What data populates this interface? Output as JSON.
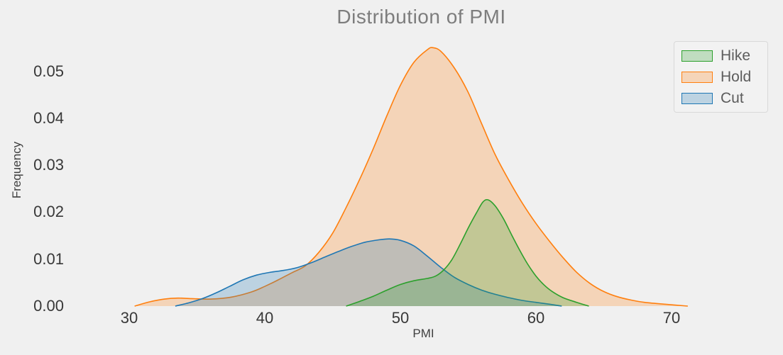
{
  "title": "Distribution of PMI",
  "colors": {
    "background": "#f0f0f0",
    "title_text": "#7d7d7d",
    "tick_text": "#383838",
    "legend_text": "#5c5c5c",
    "legend_border": "#d9d9d9",
    "hike_green": "#2ca02c",
    "hold_orange": "#ff7f0e",
    "cut_blue": "#1f77b4"
  },
  "legend": {
    "entries": [
      "Hike",
      "Hold",
      "Cut"
    ]
  },
  "chart_data": {
    "type": "area",
    "subtype": "kde-density",
    "title": "Distribution of PMI",
    "xlabel": "PMI",
    "ylabel": "Frequency",
    "x_ticks": [
      30,
      40,
      50,
      60,
      70
    ],
    "y_ticks": [
      "0.00",
      "0.01",
      "0.02",
      "0.03",
      "0.04",
      "0.05"
    ],
    "xlim": [
      30,
      70
    ],
    "ylim": [
      0,
      0.055
    ],
    "grid": false,
    "legend_position": "upper right",
    "fill_alpha": 0.25,
    "draw_order": [
      "Hold",
      "Cut",
      "Hike"
    ],
    "series": [
      {
        "name": "Hike",
        "color": "#2ca02c",
        "peak": {
          "x": 56.4,
          "y": 0.0226
        },
        "points": [
          [
            46.0,
            0
          ],
          [
            47.0,
            0.001
          ],
          [
            48.0,
            0.0021
          ],
          [
            49.0,
            0.0034
          ],
          [
            50.0,
            0.0046
          ],
          [
            51.0,
            0.0054
          ],
          [
            52.0,
            0.0059
          ],
          [
            52.6,
            0.0064
          ],
          [
            53.2,
            0.0077
          ],
          [
            53.8,
            0.0099
          ],
          [
            54.4,
            0.0131
          ],
          [
            55.0,
            0.0166
          ],
          [
            55.6,
            0.0198
          ],
          [
            56.1,
            0.0222
          ],
          [
            56.5,
            0.0226
          ],
          [
            57.0,
            0.0213
          ],
          [
            57.6,
            0.0186
          ],
          [
            58.2,
            0.0152
          ],
          [
            58.8,
            0.0119
          ],
          [
            59.4,
            0.0089
          ],
          [
            60.0,
            0.0064
          ],
          [
            60.6,
            0.0045
          ],
          [
            61.2,
            0.0031
          ],
          [
            62.0,
            0.0018
          ],
          [
            63.0,
            0.0008
          ],
          [
            63.9,
            0
          ]
        ]
      },
      {
        "name": "Hold",
        "color": "#ff7f0e",
        "peak": {
          "x": 52.4,
          "y": 0.055
        },
        "points": [
          [
            30.4,
            0
          ],
          [
            31.5,
            0.0009
          ],
          [
            32.6,
            0.0015
          ],
          [
            33.6,
            0.0017
          ],
          [
            34.6,
            0.0016
          ],
          [
            36.0,
            0.0015
          ],
          [
            37.5,
            0.0019
          ],
          [
            39.0,
            0.003
          ],
          [
            40.0,
            0.0042
          ],
          [
            41.0,
            0.0056
          ],
          [
            42.0,
            0.0071
          ],
          [
            43.0,
            0.0086
          ],
          [
            44.0,
            0.0115
          ],
          [
            45.0,
            0.0155
          ],
          [
            46.0,
            0.021
          ],
          [
            47.0,
            0.027
          ],
          [
            48.0,
            0.0335
          ],
          [
            49.0,
            0.0405
          ],
          [
            50.0,
            0.047
          ],
          [
            51.0,
            0.0519
          ],
          [
            52.0,
            0.0546
          ],
          [
            52.4,
            0.055
          ],
          [
            53.0,
            0.0542
          ],
          [
            54.0,
            0.0506
          ],
          [
            55.0,
            0.0455
          ],
          [
            56.0,
            0.0388
          ],
          [
            57.0,
            0.0322
          ],
          [
            58.0,
            0.0268
          ],
          [
            59.0,
            0.0219
          ],
          [
            60.0,
            0.0176
          ],
          [
            61.0,
            0.0138
          ],
          [
            62.0,
            0.0103
          ],
          [
            63.0,
            0.0072
          ],
          [
            64.0,
            0.0048
          ],
          [
            65.0,
            0.0031
          ],
          [
            66.0,
            0.002
          ],
          [
            67.0,
            0.0013
          ],
          [
            68.0,
            0.0008
          ],
          [
            69.5,
            0.0004
          ],
          [
            71.2,
            0
          ]
        ]
      },
      {
        "name": "Cut",
        "color": "#1f77b4",
        "peak": {
          "x": 49.2,
          "y": 0.0143
        },
        "points": [
          [
            33.4,
            0
          ],
          [
            34.4,
            0.0007
          ],
          [
            35.4,
            0.0016
          ],
          [
            36.4,
            0.0028
          ],
          [
            37.4,
            0.0042
          ],
          [
            38.4,
            0.0056
          ],
          [
            39.4,
            0.0066
          ],
          [
            40.4,
            0.0072
          ],
          [
            41.4,
            0.0076
          ],
          [
            42.4,
            0.0082
          ],
          [
            43.4,
            0.0092
          ],
          [
            44.4,
            0.0104
          ],
          [
            45.4,
            0.0116
          ],
          [
            46.4,
            0.0127
          ],
          [
            47.4,
            0.0136
          ],
          [
            48.4,
            0.0141
          ],
          [
            49.2,
            0.0143
          ],
          [
            50.0,
            0.014
          ],
          [
            51.0,
            0.0128
          ],
          [
            52.0,
            0.0106
          ],
          [
            53.0,
            0.0082
          ],
          [
            54.0,
            0.0061
          ],
          [
            55.0,
            0.0046
          ],
          [
            56.0,
            0.0034
          ],
          [
            57.0,
            0.0025
          ],
          [
            58.0,
            0.0018
          ],
          [
            59.0,
            0.0012
          ],
          [
            60.0,
            0.0008
          ],
          [
            61.0,
            0.0004
          ],
          [
            61.9,
            0
          ]
        ]
      }
    ]
  }
}
